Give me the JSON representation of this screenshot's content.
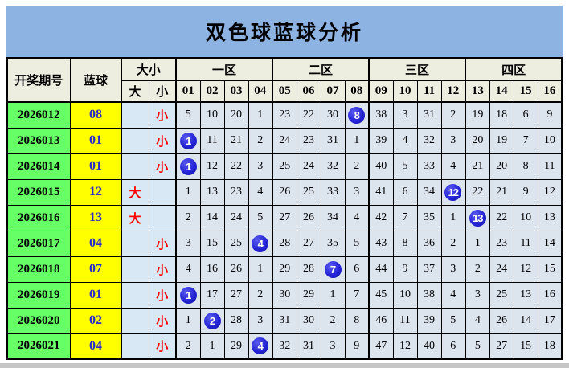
{
  "title": "双色球蓝球分析",
  "colors": {
    "banner_bg": "#8DB3E2",
    "header_bg": "#EEEEE0",
    "period_bg": "#66FF66",
    "blue_col_bg": "#FFFF00",
    "size_col_bg": "#D9E8F5",
    "zone_cell_bg": "#DCE4EE",
    "ball_blue": "#1C1CC8",
    "size_text_red": "#FF0000",
    "blue_number_text": "#2929CC"
  },
  "table": {
    "header": {
      "period": "开奖期号",
      "blue": "蓝球",
      "size_group": "大小",
      "size_big": "大",
      "size_small": "小",
      "zones": [
        {
          "label": "一区",
          "cols": [
            "01",
            "02",
            "03",
            "04"
          ]
        },
        {
          "label": "二区",
          "cols": [
            "05",
            "06",
            "07",
            "08"
          ]
        },
        {
          "label": "三区",
          "cols": [
            "09",
            "10",
            "11",
            "12"
          ]
        },
        {
          "label": "四区",
          "cols": [
            "13",
            "14",
            "15",
            "16"
          ]
        }
      ]
    },
    "rows": [
      {
        "period": "2026012",
        "blue": "08",
        "size": "小",
        "ball_index": 7,
        "cells": [
          "5",
          "10",
          "20",
          "1",
          "23",
          "22",
          "30",
          "8",
          "38",
          "3",
          "31",
          "2",
          "19",
          "18",
          "6",
          "9"
        ]
      },
      {
        "period": "2026013",
        "blue": "01",
        "size": "小",
        "ball_index": 0,
        "cells": [
          "1",
          "11",
          "21",
          "2",
          "24",
          "23",
          "31",
          "1",
          "39",
          "4",
          "32",
          "3",
          "20",
          "19",
          "7",
          "10"
        ]
      },
      {
        "period": "2026014",
        "blue": "01",
        "size": "小",
        "ball_index": 0,
        "cells": [
          "1",
          "12",
          "22",
          "3",
          "25",
          "24",
          "32",
          "2",
          "40",
          "5",
          "33",
          "4",
          "21",
          "20",
          "8",
          "11"
        ]
      },
      {
        "period": "2026015",
        "blue": "12",
        "size": "大",
        "ball_index": 11,
        "cells": [
          "1",
          "13",
          "23",
          "4",
          "26",
          "25",
          "33",
          "3",
          "41",
          "6",
          "34",
          "12",
          "22",
          "21",
          "9",
          "12"
        ]
      },
      {
        "period": "2026016",
        "blue": "13",
        "size": "大",
        "ball_index": 12,
        "cells": [
          "2",
          "14",
          "24",
          "5",
          "27",
          "26",
          "34",
          "4",
          "42",
          "7",
          "35",
          "1",
          "13",
          "22",
          "10",
          "13"
        ]
      },
      {
        "period": "2026017",
        "blue": "04",
        "size": "小",
        "ball_index": 3,
        "cells": [
          "3",
          "15",
          "25",
          "4",
          "28",
          "27",
          "35",
          "5",
          "43",
          "8",
          "36",
          "2",
          "1",
          "23",
          "11",
          "14"
        ]
      },
      {
        "period": "2026018",
        "blue": "07",
        "size": "小",
        "ball_index": 6,
        "cells": [
          "4",
          "16",
          "26",
          "1",
          "29",
          "28",
          "7",
          "6",
          "44",
          "9",
          "37",
          "3",
          "2",
          "24",
          "12",
          "15"
        ]
      },
      {
        "period": "2026019",
        "blue": "01",
        "size": "小",
        "ball_index": 0,
        "cells": [
          "1",
          "17",
          "27",
          "2",
          "30",
          "29",
          "1",
          "7",
          "45",
          "10",
          "38",
          "4",
          "3",
          "25",
          "13",
          "16"
        ]
      },
      {
        "period": "2026020",
        "blue": "02",
        "size": "小",
        "ball_index": 1,
        "cells": [
          "1",
          "2",
          "28",
          "3",
          "31",
          "30",
          "2",
          "8",
          "46",
          "11",
          "39",
          "5",
          "4",
          "26",
          "14",
          "17"
        ]
      },
      {
        "period": "2026021",
        "blue": "04",
        "size": "小",
        "ball_index": 3,
        "cells": [
          "2",
          "1",
          "29",
          "4",
          "32",
          "31",
          "3",
          "9",
          "47",
          "12",
          "40",
          "6",
          "5",
          "27",
          "15",
          "18"
        ]
      }
    ]
  },
  "chart_data": {
    "type": "table",
    "title": "双色球蓝球分析",
    "columns": [
      "开奖期号",
      "蓝球",
      "大",
      "小",
      "01",
      "02",
      "03",
      "04",
      "05",
      "06",
      "07",
      "08",
      "09",
      "10",
      "11",
      "12",
      "13",
      "14",
      "15",
      "16"
    ],
    "zone_groups": {
      "一区": [
        "01",
        "02",
        "03",
        "04"
      ],
      "二区": [
        "05",
        "06",
        "07",
        "08"
      ],
      "三区": [
        "09",
        "10",
        "11",
        "12"
      ],
      "四区": [
        "13",
        "14",
        "15",
        "16"
      ]
    },
    "draws": [
      {
        "period": "2026012",
        "blue_ball": 8,
        "size": "小"
      },
      {
        "period": "2026013",
        "blue_ball": 1,
        "size": "小"
      },
      {
        "period": "2026014",
        "blue_ball": 1,
        "size": "小"
      },
      {
        "period": "2026015",
        "blue_ball": 12,
        "size": "大"
      },
      {
        "period": "2026016",
        "blue_ball": 13,
        "size": "大"
      },
      {
        "period": "2026017",
        "blue_ball": 4,
        "size": "小"
      },
      {
        "period": "2026018",
        "blue_ball": 7,
        "size": "小"
      },
      {
        "period": "2026019",
        "blue_ball": 1,
        "size": "小"
      },
      {
        "period": "2026020",
        "blue_ball": 2,
        "size": "小"
      },
      {
        "period": "2026021",
        "blue_ball": 4,
        "size": "小"
      }
    ]
  }
}
